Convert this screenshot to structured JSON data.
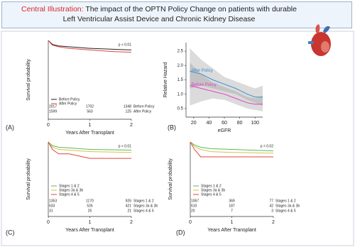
{
  "header": {
    "label": "Central Illustration:",
    "title": "The impact of the OPTN Policy Change on patients with durable Left Ventricular Assist Device and Chronic Kidney Disease"
  },
  "chart_data": [
    {
      "type": "line",
      "panel": "(A)",
      "xlabel": "Years After Transplant",
      "ylabel": "Survival probability",
      "annotation": "p < 0.01",
      "x": [
        0,
        0.1,
        0.25,
        0.5,
        1,
        1.5,
        2
      ],
      "xlim": [
        0,
        2
      ],
      "xticks": [
        0,
        1,
        2
      ],
      "ylim": [
        0,
        1
      ],
      "series": [
        {
          "name": "Before Policy",
          "color": "#222222",
          "values": [
            1,
            0.95,
            0.93,
            0.92,
            0.9,
            0.89,
            0.88
          ],
          "at_risk": [
            2017,
            1702,
            1348
          ]
        },
        {
          "name": "After Policy",
          "color": "#e0463c",
          "values": [
            1,
            0.94,
            0.92,
            0.9,
            0.88,
            0.86,
            0.85
          ],
          "at_risk": [
            1599,
            563,
            125
          ]
        }
      ]
    },
    {
      "type": "line",
      "panel": "(B)",
      "xlabel": "eGFR",
      "ylabel": "Relative Hazard",
      "x": [
        15,
        30,
        45,
        60,
        75,
        90,
        100,
        110
      ],
      "xlim": [
        10,
        110
      ],
      "xticks": [
        20,
        40,
        60,
        80,
        100
      ],
      "ylim": [
        0.2,
        2.8
      ],
      "yticks": [
        {
          "value": 0.5,
          "label": "0.5"
        },
        {
          "value": 1,
          "label": "1.0"
        },
        {
          "value": 1.5,
          "label": "1.5"
        },
        {
          "value": 2,
          "label": "2.0"
        },
        {
          "value": 2.5,
          "label": "2.5"
        }
      ],
      "series": [
        {
          "name": "After Policy",
          "color": "#3b8fd6",
          "values": [
            1.8,
            1.7,
            1.5,
            1.35,
            1.2,
            1.0,
            0.9,
            0.9
          ],
          "lower": [
            1.2,
            1.3,
            1.2,
            1.1,
            1.0,
            0.8,
            0.7,
            0.6
          ],
          "upper": [
            2.6,
            2.2,
            1.9,
            1.6,
            1.45,
            1.3,
            1.2,
            1.3
          ]
        },
        {
          "name": "Before Policy",
          "color": "#e040c8",
          "values": [
            1.3,
            1.2,
            1.1,
            1.0,
            0.85,
            0.7,
            0.65,
            0.65
          ],
          "lower": [
            0.6,
            0.75,
            0.85,
            0.8,
            0.65,
            0.5,
            0.45,
            0.4
          ],
          "upper": [
            2.1,
            1.7,
            1.4,
            1.25,
            1.1,
            0.9,
            0.85,
            0.95
          ]
        }
      ]
    },
    {
      "type": "line",
      "panel": "(C)",
      "xlabel": "Years After Transplant",
      "ylabel": "Survival probability",
      "annotation": "p < 0.01",
      "x": [
        0,
        0.1,
        0.25,
        0.5,
        1,
        2
      ],
      "xlim": [
        0,
        2
      ],
      "xticks": [
        0,
        1,
        2
      ],
      "ylim": [
        0,
        1
      ],
      "series": [
        {
          "name": "Stages 1 & 2",
          "color": "#5cb85c",
          "values": [
            1,
            0.95,
            0.93,
            0.92,
            0.9,
            0.89
          ],
          "at_risk": [
            1353,
            1170,
            926
          ]
        },
        {
          "name": "Stages 3a & 3b",
          "color": "#d4c34a",
          "values": [
            1,
            0.93,
            0.9,
            0.89,
            0.87,
            0.86
          ],
          "at_risk": [
            633,
            526,
            421
          ]
        },
        {
          "name": "Stages 4 & 5",
          "color": "#e0463c",
          "values": [
            1,
            0.9,
            0.84,
            0.84,
            0.78,
            0.78
          ],
          "at_risk": [
            31,
            25,
            21
          ]
        }
      ]
    },
    {
      "type": "line",
      "panel": "(D)",
      "xlabel": "Years After Transplant",
      "ylabel": "Survival probability",
      "annotation": "p = 0.02",
      "x": [
        0,
        0.1,
        0.25,
        0.5,
        1,
        2
      ],
      "xlim": [
        0,
        2
      ],
      "xticks": [
        0,
        1,
        2
      ],
      "ylim": [
        0,
        1
      ],
      "series": [
        {
          "name": "Stages 1 & 2",
          "color": "#5cb85c",
          "values": [
            1,
            0.96,
            0.93,
            0.91,
            0.9,
            0.88
          ],
          "at_risk": [
            1067,
            369,
            77
          ]
        },
        {
          "name": "Stages 3a & 3b",
          "color": "#d4c34a",
          "values": [
            1,
            0.94,
            0.9,
            0.87,
            0.86,
            0.85
          ],
          "at_risk": [
            610,
            187,
            42
          ]
        },
        {
          "name": "Stages 4 & 5",
          "color": "#e0463c",
          "values": [
            1,
            0.9,
            0.8,
            0.8,
            0.8,
            0.8
          ],
          "at_risk": [
            20,
            7,
            3
          ]
        }
      ]
    }
  ]
}
